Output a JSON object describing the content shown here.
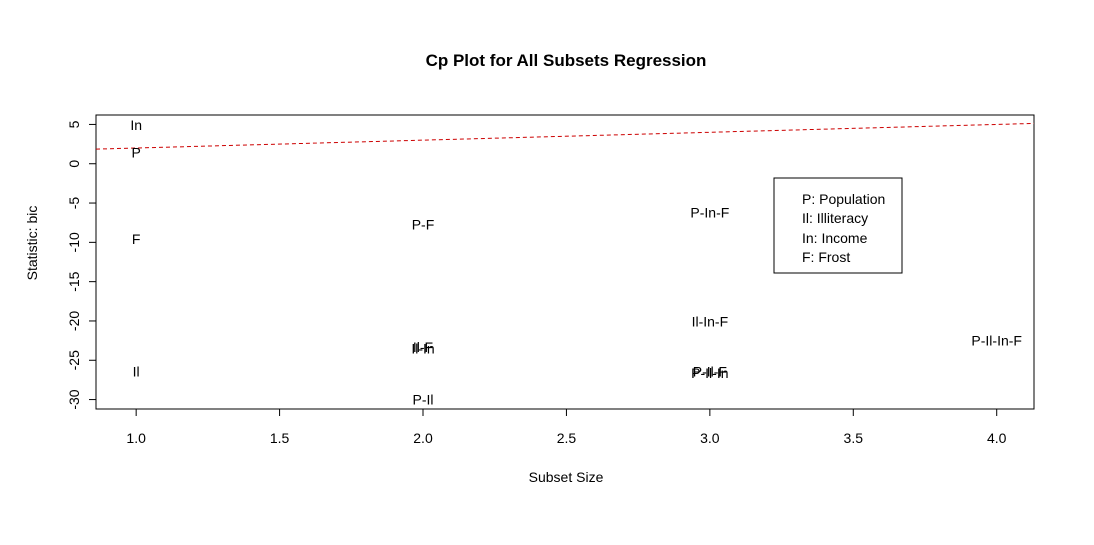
{
  "chart_data": {
    "type": "scatter",
    "title": "Cp Plot for All Subsets Regression",
    "xlabel": "Subset Size",
    "ylabel": "Statistic: bic",
    "xlim": [
      0.86,
      4.13
    ],
    "ylim": [
      -31.2,
      6.2
    ],
    "x_ticks": [
      1.0,
      1.5,
      2.0,
      2.5,
      3.0,
      3.5,
      4.0
    ],
    "x_tick_labels": [
      "1.0",
      "1.5",
      "2.0",
      "2.5",
      "3.0",
      "3.5",
      "4.0"
    ],
    "y_ticks": [
      5,
      0,
      -5,
      -10,
      -15,
      -20,
      -25,
      -30
    ],
    "y_tick_labels": [
      "5",
      "0",
      "-5",
      "-10",
      "-15",
      "-20",
      "-25",
      "-30"
    ],
    "grid": false,
    "points": [
      {
        "label": "In",
        "x": 1.0,
        "y": 4.9
      },
      {
        "label": "P",
        "x": 1.0,
        "y": 1.4
      },
      {
        "label": "F",
        "x": 1.0,
        "y": -9.6
      },
      {
        "label": "Il",
        "x": 1.0,
        "y": -26.4
      },
      {
        "label": "P-F",
        "x": 2.0,
        "y": -7.7
      },
      {
        "label": "Il-F",
        "x": 2.0,
        "y": -23.3
      },
      {
        "label": "Il-In",
        "x": 2.0,
        "y": -23.5
      },
      {
        "label": "P-Il",
        "x": 2.0,
        "y": -30.0
      },
      {
        "label": "P-In-F",
        "x": 3.0,
        "y": -6.2
      },
      {
        "label": "Il-In-F",
        "x": 3.0,
        "y": -20.1
      },
      {
        "label": "P-Il-F",
        "x": 3.0,
        "y": -26.4
      },
      {
        "label": "P-Il-In",
        "x": 3.0,
        "y": -26.6
      },
      {
        "label": "P-Il-In-F",
        "x": 4.0,
        "y": -22.5
      }
    ],
    "reference_line": {
      "style": "dashed",
      "color": "#cc0000",
      "x": [
        0.86,
        4.13
      ],
      "y": [
        1.86,
        5.13
      ]
    },
    "legend": {
      "placement": "right",
      "entries": [
        "P: Population",
        "Il: Illiteracy",
        "In: Income",
        "F: Frost"
      ]
    }
  }
}
